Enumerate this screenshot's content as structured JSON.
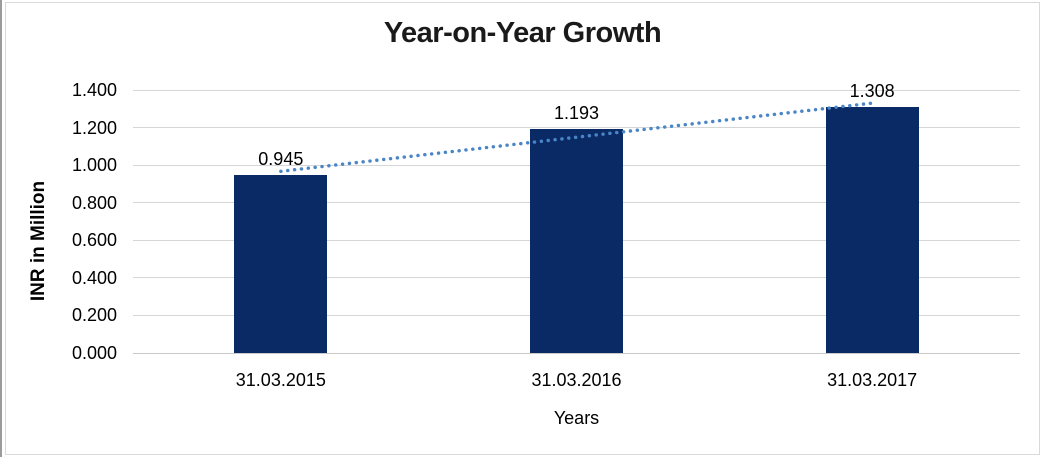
{
  "chart_data": {
    "type": "bar",
    "title": "Year-on-Year Growth",
    "xlabel": "Years",
    "ylabel": "INR in Million",
    "categories": [
      "31.03.2015",
      "31.03.2016",
      "31.03.2017"
    ],
    "values": [
      0.945,
      1.193,
      1.308
    ],
    "data_labels": [
      "0.945",
      "1.193",
      "1.308"
    ],
    "ytick_labels": [
      "0.000",
      "0.200",
      "0.400",
      "0.600",
      "0.800",
      "1.000",
      "1.200",
      "1.400"
    ],
    "ytick_step": 0.2,
    "ylim": [
      0,
      1.4
    ],
    "grid": true,
    "legend": "none",
    "trendline": {
      "type": "linear",
      "style": "dotted",
      "color": "#4a85c6"
    },
    "colors": {
      "bar": "#0a2a66",
      "gridline": "#d6d6d6",
      "axis_line": "#c9c9c9",
      "title_text": "#1a1a1a",
      "label_text": "#000000",
      "frame_border": "#d9d9d9",
      "background": "#ffffff"
    }
  }
}
